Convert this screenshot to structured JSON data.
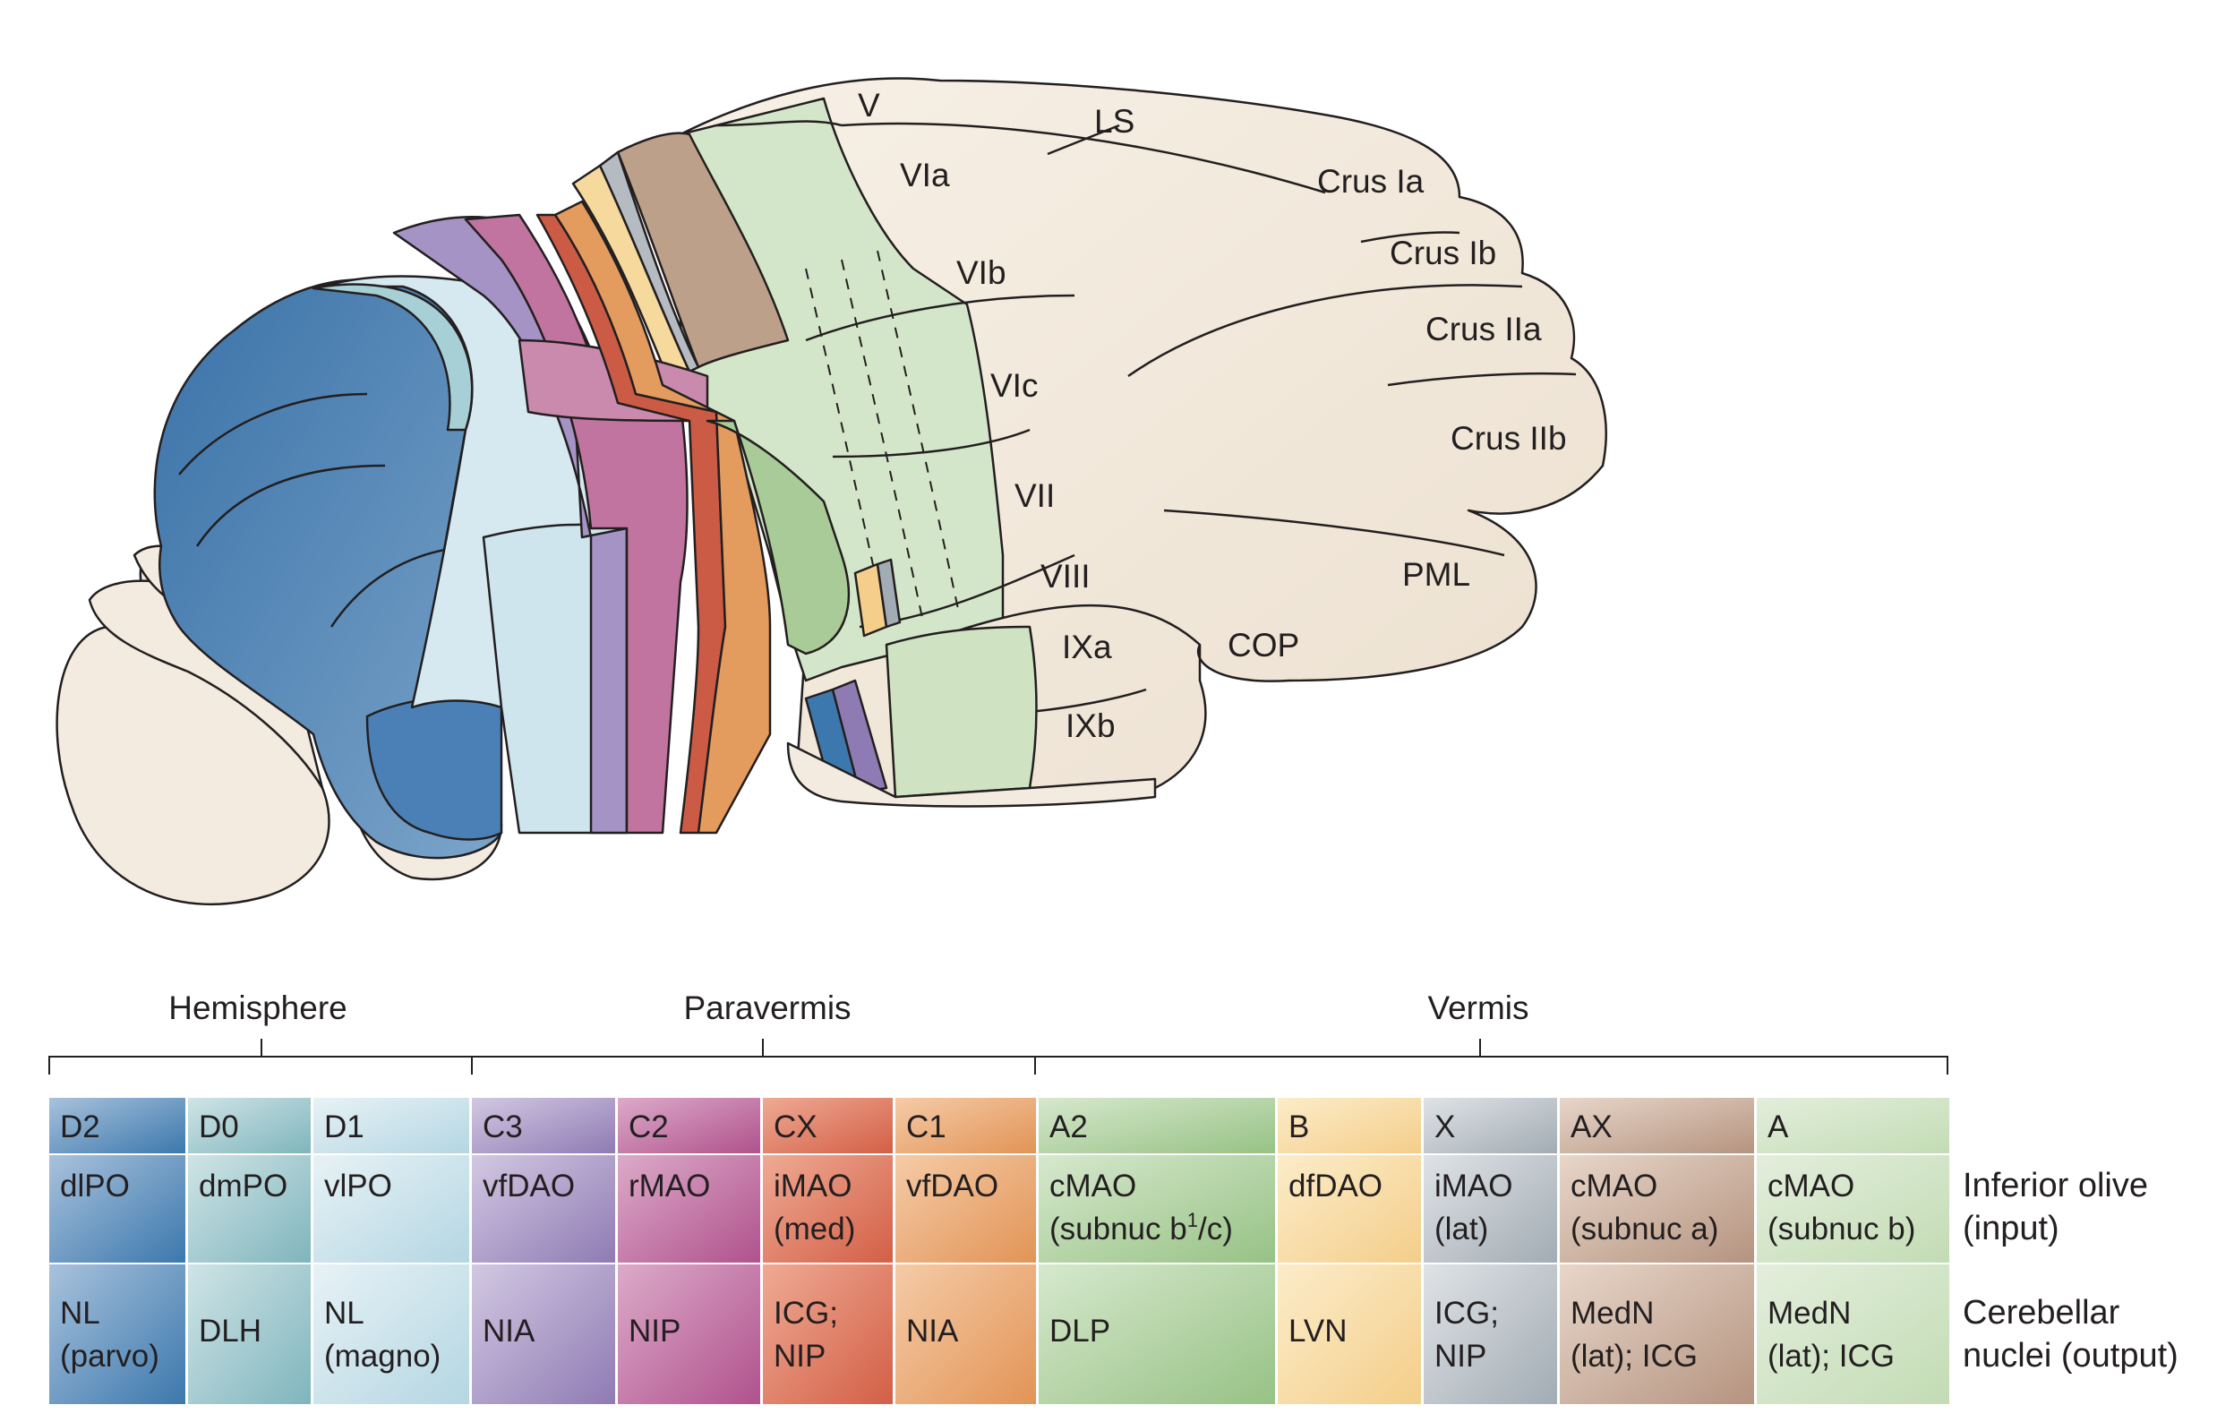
{
  "lobule_labels": {
    "V": "V",
    "LS": "LS",
    "VIa": "VIa",
    "VIb": "VIb",
    "VIc": "VIc",
    "VII": "VII",
    "VIII": "VIII",
    "IXa": "IXa",
    "IXb": "IXb",
    "crus_ia": "Crus Ia",
    "crus_ib": "Crus Ib",
    "crus_iia": "Crus IIa",
    "crus_iib": "Crus IIb",
    "PML": "PML",
    "COP": "COP"
  },
  "regions": {
    "hemisphere": "Hemisphere",
    "paravermis": "Paravermis",
    "vermis": "Vermis"
  },
  "row_titles": {
    "inferior_olive": [
      "Inferior olive",
      "(input)"
    ],
    "cerebellar_nuclei": [
      "Cerebellar",
      "nuclei (output)"
    ]
  },
  "zones": [
    {
      "name": "D2",
      "olive": [
        "dlPO"
      ],
      "nuclei": [
        "NL",
        "(parvo)"
      ],
      "color_from": "#a8c2dc",
      "color_to": "#3c78ad"
    },
    {
      "name": "D0",
      "olive": [
        "dmPO"
      ],
      "nuclei": [
        "DLH"
      ],
      "color_from": "#cfe4e6",
      "color_to": "#7fb5bd"
    },
    {
      "name": "D1",
      "olive": [
        "vlPO"
      ],
      "nuclei": [
        "NL",
        "(magno)"
      ],
      "color_from": "#e7f2f6",
      "color_to": "#b4d6e2"
    },
    {
      "name": "C3",
      "olive": [
        "vfDAO"
      ],
      "nuclei": [
        "NIA"
      ],
      "color_from": "#d2c8e2",
      "color_to": "#8f7bb4"
    },
    {
      "name": "C2",
      "olive": [
        "rMAO"
      ],
      "nuclei": [
        "NIP"
      ],
      "color_from": "#dcaac9",
      "color_to": "#b0528d"
    },
    {
      "name": "CX",
      "olive": [
        "iMAO",
        "(med)"
      ],
      "nuclei": [
        "ICG;",
        "NIP"
      ],
      "color_from": "#efaa94",
      "color_to": "#d35f46"
    },
    {
      "name": "C1",
      "olive": [
        "vfDAO"
      ],
      "nuclei": [
        "NIA"
      ],
      "color_from": "#f5cba7",
      "color_to": "#e29456"
    },
    {
      "name": "A2",
      "olive": [
        "cMAO",
        "(subnuc b",
        "1",
        "/c)"
      ],
      "nuclei": [
        "DLP"
      ],
      "color_from": "#d6e8cd",
      "color_to": "#97c285"
    },
    {
      "name": "B",
      "olive": [
        "dfDAO"
      ],
      "nuclei": [
        "LVN"
      ],
      "color_from": "#fcecc9",
      "color_to": "#f4ce8a"
    },
    {
      "name": "X",
      "olive": [
        "iMAO",
        "(lat)"
      ],
      "nuclei": [
        "ICG;",
        "NIP"
      ],
      "color_from": "#dfe3e6",
      "color_to": "#a2acb4"
    },
    {
      "name": "AX",
      "olive": [
        "cMAO",
        "(subnuc a)"
      ],
      "nuclei": [
        "MedN",
        "(lat); ICG"
      ],
      "color_from": "#e8d6c9",
      "color_to": "#b59480"
    },
    {
      "name": "A",
      "olive": [
        "cMAO",
        "(subnuc b)"
      ],
      "nuclei": [
        "MedN",
        "(lat); ICG"
      ],
      "color_from": "#e3eedc",
      "color_to": "#c3dcb4"
    }
  ]
}
